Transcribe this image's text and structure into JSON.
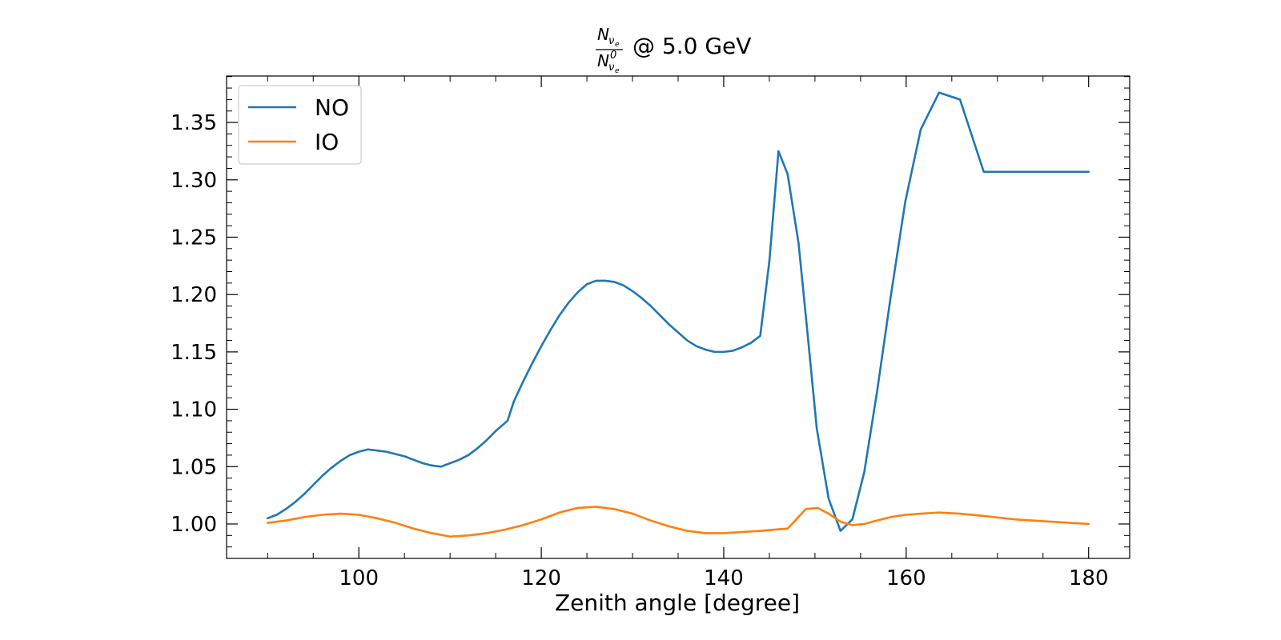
{
  "chart_data": {
    "type": "line",
    "title": "@ 5.0 GeV",
    "title_fraction": {
      "numerator": "N",
      "numerator_sub": "ν",
      "numerator_subsub": "e",
      "denominator": "N",
      "denominator_sup": "0",
      "denominator_sub": "ν",
      "denominator_subsub": "e"
    },
    "xlabel": "Zenith angle [degree]",
    "ylabel": "",
    "xlim": [
      85.5,
      184.5
    ],
    "ylim": [
      0.97,
      1.3905
    ],
    "xticks": [
      100,
      120,
      140,
      160,
      180
    ],
    "xtick_labels": [
      "100",
      "120",
      "140",
      "160",
      "180"
    ],
    "yticks": [
      1.0,
      1.05,
      1.1,
      1.15,
      1.2,
      1.25,
      1.3,
      1.35
    ],
    "ytick_labels": [
      "1.00",
      "1.05",
      "1.10",
      "1.15",
      "1.20",
      "1.25",
      "1.30",
      "1.35"
    ],
    "grid": false,
    "legend_position": "top-left",
    "series": [
      {
        "name": "NO",
        "color": "#1f77b4",
        "x": [
          90,
          91,
          92,
          93,
          94,
          95,
          96,
          97,
          98,
          99,
          100,
          101,
          102,
          103,
          104,
          105,
          106,
          107,
          108,
          109,
          110,
          111,
          112,
          113,
          114,
          115,
          116.3,
          117,
          118,
          119,
          120,
          121,
          122,
          123,
          124,
          125,
          126,
          127,
          128,
          129,
          130,
          131,
          132,
          133,
          134,
          135,
          136,
          137,
          138,
          139,
          140,
          141,
          142,
          143,
          144,
          145,
          146,
          147,
          148.2,
          149.2,
          150.2,
          151.5,
          152.8,
          154.1,
          155.4,
          156.8,
          158.3,
          159.9,
          161.6,
          163.6,
          165.9,
          168.5,
          171.9,
          180
        ],
        "y": [
          1.005,
          1.008,
          1.013,
          1.019,
          1.026,
          1.034,
          1.042,
          1.049,
          1.055,
          1.06,
          1.063,
          1.065,
          1.064,
          1.063,
          1.061,
          1.059,
          1.056,
          1.053,
          1.051,
          1.05,
          1.053,
          1.056,
          1.06,
          1.066,
          1.073,
          1.081,
          1.09,
          1.107,
          1.124,
          1.14,
          1.155,
          1.169,
          1.182,
          1.193,
          1.202,
          1.209,
          1.212,
          1.212,
          1.211,
          1.208,
          1.203,
          1.197,
          1.19,
          1.182,
          1.174,
          1.167,
          1.16,
          1.155,
          1.152,
          1.15,
          1.15,
          1.151,
          1.154,
          1.158,
          1.164,
          1.229,
          1.325,
          1.305,
          1.245,
          1.165,
          1.083,
          1.022,
          0.994,
          1.004,
          1.045,
          1.115,
          1.198,
          1.281,
          1.344,
          1.376,
          1.37,
          1.307,
          1.307,
          1.307
        ]
      },
      {
        "name": "IO",
        "color": "#ff7f0e",
        "x": [
          90,
          92,
          94,
          96,
          98,
          100,
          102,
          104,
          106,
          108,
          110,
          112,
          114,
          116,
          118,
          120,
          122,
          124,
          126,
          128,
          130,
          132,
          134,
          136,
          138,
          140,
          142,
          144,
          147,
          149,
          150.3,
          151.5,
          152.8,
          154.1,
          155.4,
          156.8,
          158.3,
          159.9,
          161.6,
          163.6,
          165.9,
          168.5,
          171.9,
          180
        ],
        "y": [
          1.001,
          1.003,
          1.006,
          1.008,
          1.009,
          1.008,
          1.005,
          1.001,
          0.996,
          0.992,
          0.989,
          0.99,
          0.992,
          0.995,
          0.999,
          1.004,
          1.01,
          1.014,
          1.015,
          1.013,
          1.009,
          1.003,
          0.998,
          0.994,
          0.992,
          0.992,
          0.993,
          0.994,
          0.996,
          1.013,
          1.014,
          1.009,
          1.002,
          0.999,
          1.0,
          1.003,
          1.006,
          1.008,
          1.009,
          1.01,
          1.009,
          1.007,
          1.004,
          1.0
        ]
      }
    ]
  }
}
